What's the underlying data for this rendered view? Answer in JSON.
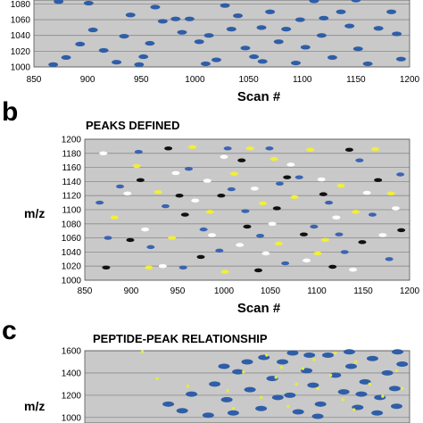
{
  "chart_data": [
    {
      "panel": "a",
      "type": "scatter",
      "panel_label": "",
      "title": "",
      "xlabel": "Scan #",
      "ylabel": "",
      "xlim": [
        850,
        1200
      ],
      "ylim": [
        1000,
        1090
      ],
      "xticks": [
        850,
        900,
        950,
        1000,
        1050,
        1100,
        1150,
        1200
      ],
      "xtick_labels": [
        "850",
        "900",
        "950",
        "1000",
        "1050",
        "1100",
        "1150",
        "1200"
      ],
      "yticks": [
        1000,
        1020,
        1040,
        1060,
        1080
      ],
      "grid": true,
      "colors": {
        "plot_bg": "#c9c9c9",
        "grid": "#8a8a8a",
        "blue": "#2f5ea8"
      },
      "series": [
        {
          "color": "blue",
          "points": [
            [
              868,
              1003
            ],
            [
              880,
              1012
            ],
            [
              893,
              1029
            ],
            [
              905,
              1047
            ],
            [
              915,
              1021
            ],
            [
              927,
              1006
            ],
            [
              934,
              1039
            ],
            [
              948,
              1003
            ],
            [
              952,
              1013
            ],
            [
              963,
              1076
            ],
            [
              970,
              1058
            ],
            [
              982,
              1061
            ],
            [
              995,
              1061
            ],
            [
              1004,
              1032
            ],
            [
              1013,
              1040
            ],
            [
              1020,
              1009
            ],
            [
              1028,
              1078
            ],
            [
              1034,
              1048
            ],
            [
              1047,
              1024
            ],
            [
              1055,
              1013
            ],
            [
              1062,
              1050
            ],
            [
              1070,
              1070
            ],
            [
              1078,
              1032
            ],
            [
              1085,
              1048
            ],
            [
              1094,
              1005
            ],
            [
              1103,
              1025
            ],
            [
              1111,
              1084
            ],
            [
              1118,
              1040
            ],
            [
              1128,
              1012
            ],
            [
              1136,
              1070
            ],
            [
              1144,
              1052
            ],
            [
              1152,
              1023
            ],
            [
              1161,
              1004
            ],
            [
              1171,
              1049
            ],
            [
              1183,
              1070
            ],
            [
              1192,
              1010
            ],
            [
              873,
              1083
            ],
            [
              901,
              1081
            ],
            [
              940,
              1066
            ],
            [
              988,
              1044
            ],
            [
              1040,
              1065
            ],
            [
              1098,
              1060
            ],
            [
              1150,
              1085
            ],
            [
              1188,
              1042
            ],
            [
              1010,
              1004
            ],
            [
              1063,
              1007
            ],
            [
              1120,
              1062
            ],
            [
              958,
              1030
            ]
          ]
        }
      ]
    },
    {
      "panel": "b",
      "type": "scatter",
      "panel_label": "b",
      "title": "PEAKS DEFINED",
      "xlabel": "Scan #",
      "ylabel": "m/z",
      "xlim": [
        850,
        1200
      ],
      "ylim": [
        1000,
        1200
      ],
      "xticks": [
        850,
        900,
        950,
        1000,
        1050,
        1100,
        1150,
        1200
      ],
      "xtick_labels": [
        "850",
        "900",
        "950",
        "1000",
        "1050",
        "1100",
        "1150",
        "1200"
      ],
      "yticks": [
        1000,
        1020,
        1040,
        1060,
        1080,
        1100,
        1120,
        1140,
        1160,
        1180,
        1200
      ],
      "grid": true,
      "colors": {
        "plot_bg": "#c9c9c9",
        "grid": "#8a8a8a",
        "blue": "#3b64b2",
        "white": "#ffffff",
        "yellow": "#f2ee3a",
        "black": "#111111"
      },
      "series": [
        {
          "color": "blue",
          "points": [
            [
              875,
              1060
            ],
            [
              888,
              1133
            ],
            [
              908,
              1182
            ],
            [
              921,
              1047
            ],
            [
              937,
              1105
            ],
            [
              962,
              1158
            ],
            [
              978,
              1072
            ],
            [
              995,
              1042
            ],
            [
              1008,
              1129
            ],
            [
              1023,
              1098
            ],
            [
              1039,
              1063
            ],
            [
              1049,
              1187
            ],
            [
              1066,
              1024
            ],
            [
              1081,
              1146
            ],
            [
              1097,
              1076
            ],
            [
              1113,
              1110
            ],
            [
              1130,
              1040
            ],
            [
              1146,
              1170
            ],
            [
              1160,
              1093
            ],
            [
              1178,
              1030
            ],
            [
              1190,
              1150
            ],
            [
              1004,
              1187
            ],
            [
              956,
              1018
            ],
            [
              1060,
              1137
            ],
            [
              1124,
              1065
            ],
            [
              866,
              1110
            ]
          ]
        },
        {
          "color": "white",
          "points": [
            [
              870,
              1180
            ],
            [
              896,
              1123
            ],
            [
              915,
              1072
            ],
            [
              934,
              1020
            ],
            [
              948,
              1152
            ],
            [
              969,
              1113
            ],
            [
              987,
              1064
            ],
            [
              1000,
              1175
            ],
            [
              1017,
              1050
            ],
            [
              1033,
              1130
            ],
            [
              1052,
              1080
            ],
            [
              1072,
              1164
            ],
            [
              1089,
              1028
            ],
            [
              1105,
              1143
            ],
            [
              1121,
              1089
            ],
            [
              1139,
              1015
            ],
            [
              1154,
              1124
            ],
            [
              1171,
              1064
            ],
            [
              1185,
              1102
            ],
            [
              1045,
              1038
            ],
            [
              982,
              1141
            ]
          ]
        },
        {
          "color": "yellow",
          "points": [
            [
              882,
              1089
            ],
            [
              906,
              1162
            ],
            [
              929,
              1125
            ],
            [
              944,
              1060
            ],
            [
              966,
              1189
            ],
            [
              985,
              1097
            ],
            [
              1011,
              1151
            ],
            [
              1028,
              1187
            ],
            [
              1042,
              1109
            ],
            [
              1059,
              1052
            ],
            [
              1076,
              1118
            ],
            [
              1093,
              1185
            ],
            [
              1109,
              1057
            ],
            [
              1126,
              1134
            ],
            [
              1142,
              1097
            ],
            [
              1163,
              1186
            ],
            [
              1180,
              1123
            ],
            [
              919,
              1018
            ],
            [
              1001,
              1012
            ],
            [
              1101,
              1038
            ],
            [
              1054,
              1172
            ]
          ]
        },
        {
          "color": "black",
          "points": [
            [
              873,
              1018
            ],
            [
              899,
              1057
            ],
            [
              910,
              1142
            ],
            [
              940,
              1187
            ],
            [
              958,
              1093
            ],
            [
              975,
              1033
            ],
            [
              997,
              1120
            ],
            [
              1019,
              1170
            ],
            [
              1037,
              1014
            ],
            [
              1057,
              1102
            ],
            [
              1068,
              1146
            ],
            [
              1086,
              1065
            ],
            [
              1107,
              1122
            ],
            [
              1117,
              1019
            ],
            [
              1135,
              1185
            ],
            [
              1149,
              1054
            ],
            [
              1166,
              1142
            ],
            [
              1191,
              1071
            ],
            [
              952,
              1120
            ],
            [
              1025,
              1076
            ]
          ]
        }
      ]
    },
    {
      "panel": "c",
      "type": "scatter",
      "panel_label": "c",
      "title": "PEPTIDE-PEAK RELATIONSHIP",
      "xlabel": "",
      "ylabel": "m/z",
      "xlim": [
        850,
        1200
      ],
      "ylim": [
        950,
        1600
      ],
      "xticks": [],
      "yticks": [
        1000,
        1200,
        1400,
        1600
      ],
      "ytick_labels": [
        "1000",
        "1200",
        "1400",
        "1600"
      ],
      "grid": true,
      "colors": {
        "plot_bg": "#c9c9c9",
        "grid": "#8a8a8a",
        "blue": "#2f5ea8",
        "peptide": "#e8ec3c"
      },
      "peak_density_note": "",
      "series": [
        {
          "color": "blue",
          "points": [
            [
              940,
              1120
            ],
            [
              965,
              1210
            ],
            [
              990,
              1300
            ],
            [
              1003,
              1160
            ],
            [
              1015,
              1410
            ],
            [
              1028,
              1250
            ],
            [
              1040,
              1080
            ],
            [
              1052,
              1350
            ],
            [
              1063,
              1500
            ],
            [
              1071,
              1200
            ],
            [
              1080,
              1050
            ],
            [
              1089,
              1420
            ],
            [
              1096,
              1290
            ],
            [
              1104,
              1120
            ],
            [
              1112,
              1560
            ],
            [
              1120,
              1380
            ],
            [
              1129,
              1230
            ],
            [
              1137,
              1460
            ],
            [
              1144,
              1090
            ],
            [
              1152,
              1320
            ],
            [
              1160,
              1530
            ],
            [
              1168,
              1180
            ],
            [
              1176,
              1400
            ],
            [
              1184,
              1260
            ],
            [
              1192,
              1480
            ],
            [
              1010,
              1040
            ],
            [
              1058,
              1180
            ],
            [
              1101,
              1010
            ],
            [
              1148,
              1210
            ],
            [
              1186,
              1100
            ],
            [
              1025,
              1500
            ],
            [
              1074,
              1580
            ],
            [
              1135,
              1590
            ],
            [
              1187,
              1590
            ],
            [
              1000,
              1460
            ],
            [
              1043,
              1540
            ],
            [
              955,
              1060
            ],
            [
              983,
              1020
            ],
            [
              1092,
              1560
            ],
            [
              1165,
              1040
            ]
          ]
        },
        {
          "color": "peptide",
          "points": [
            [
              912,
              1590
            ],
            [
              928,
              1350
            ],
            [
              961,
              1280
            ],
            [
              1004,
              1240
            ],
            [
              1021,
              1410
            ],
            [
              1040,
              1180
            ],
            [
              1056,
              1360
            ],
            [
              1069,
              1100
            ],
            [
              1085,
              1440
            ],
            [
              1101,
              1260
            ],
            [
              1115,
              1380
            ],
            [
              1128,
              1160
            ],
            [
              1142,
              1500
            ],
            [
              1157,
              1300
            ],
            [
              1171,
              1190
            ],
            [
              1186,
              1420
            ],
            [
              1046,
              1560
            ],
            [
              1097,
              1520
            ],
            [
              1140,
              1070
            ],
            [
              1078,
              1300
            ],
            [
              1192,
              1260
            ],
            [
              1010,
              1080
            ],
            [
              1120,
              1580
            ],
            [
              1062,
              1450
            ]
          ]
        }
      ]
    }
  ],
  "page": {
    "panel_b_letter": "b",
    "panel_b_title": "PEAKS DEFINED",
    "panel_c_letter": "c",
    "panel_c_title": "PEPTIDE-PEAK RELATIONSHIP",
    "panel_a_xlabel": "Scan #",
    "panel_b_xlabel": "Scan #",
    "panel_b_ylabel": "m/z",
    "panel_c_ylabel": "m/z"
  }
}
